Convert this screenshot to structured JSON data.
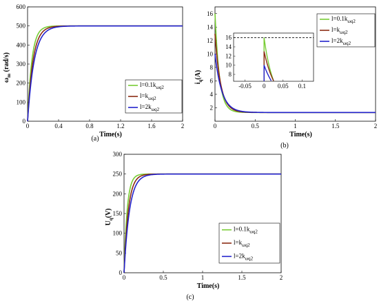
{
  "chart_data": [
    {
      "type": "line",
      "caption": "(a)",
      "xlabel": "Time(s)",
      "ylabel": "ω",
      "ylabel_sub": "m",
      "ylabel_tail": " (rad/s)",
      "xlim": [
        0,
        2
      ],
      "ylim": [
        0,
        600
      ],
      "xticks": [
        "0",
        "0.4",
        "0.8",
        "1.2",
        "1.6",
        "2"
      ],
      "xtick_values": [
        0,
        0.4,
        0.8,
        1.2,
        1.6,
        2
      ],
      "yticks": [
        "0",
        "100",
        "200",
        "300",
        "400",
        "500",
        "600"
      ],
      "ytick_values": [
        0,
        100,
        200,
        300,
        400,
        500,
        600
      ],
      "legend_position": "center-right",
      "series": [
        {
          "name": "l=0.1k",
          "name_sub": "ωq2",
          "color": "#77cc33",
          "final": 500,
          "tau": 0.055
        },
        {
          "name": "l=k",
          "name_sub": "ωq2",
          "color": "#8b2b12",
          "final": 500,
          "tau": 0.07
        },
        {
          "name": "l=2k",
          "name_sub": "ωq2",
          "color": "#2222cc",
          "final": 500,
          "tau": 0.085
        }
      ]
    },
    {
      "type": "line",
      "caption": "(b)",
      "xlabel": "Time(s)",
      "ylabel": "i",
      "ylabel_sub": "q",
      "ylabel_tail": "(A)",
      "xlim": [
        0,
        2
      ],
      "ylim": [
        0,
        17
      ],
      "xticks": [
        "0",
        "0.5",
        "1",
        "1.5",
        "2"
      ],
      "xtick_values": [
        0,
        0.5,
        1,
        1.5,
        2
      ],
      "yticks": [
        "2",
        "4",
        "6",
        "8",
        "10",
        "12",
        "14",
        "16"
      ],
      "ytick_values": [
        2,
        4,
        6,
        8,
        10,
        12,
        14,
        16
      ],
      "legend_position": "top-right",
      "series": [
        {
          "name": "l=0.1k",
          "name_sub": "ωq2",
          "color": "#77cc33",
          "peak": 16,
          "final": 1.3,
          "tau": 0.055
        },
        {
          "name": "l=k",
          "name_sub": "ωq2",
          "color": "#8b2b12",
          "peak": 13,
          "final": 1.3,
          "tau": 0.07
        },
        {
          "name": "l=2k",
          "name_sub": "ωq2",
          "color": "#2222cc",
          "peak": 10,
          "final": 1.3,
          "tau": 0.085
        }
      ],
      "inset": {
        "xlim": [
          -0.08,
          0.13
        ],
        "ylim": [
          6.5,
          17
        ],
        "xticks": [
          "-0.05",
          "0",
          "0.05",
          "0.1"
        ],
        "xtick_values": [
          -0.05,
          0,
          0.05,
          0.1
        ],
        "yticks": [
          "8",
          "10",
          "12",
          "14",
          "16"
        ],
        "ytick_values": [
          8,
          10,
          12,
          14,
          16
        ],
        "dashed_level": 16
      }
    },
    {
      "type": "line",
      "caption": "(c)",
      "xlabel": "Time(s)",
      "ylabel": "U",
      "ylabel_sub": "q",
      "ylabel_tail": "(V)",
      "xlim": [
        0,
        2
      ],
      "ylim": [
        0,
        300
      ],
      "xticks": [
        "0",
        "0.5",
        "1",
        "1.5",
        "2"
      ],
      "xtick_values": [
        0,
        0.5,
        1,
        1.5,
        2
      ],
      "yticks": [
        "0",
        "50",
        "100",
        "150",
        "200",
        "250",
        "300"
      ],
      "ytick_values": [
        0,
        50,
        100,
        150,
        200,
        250,
        300
      ],
      "legend_position": "bottom-right",
      "series": [
        {
          "name": "l=0.1k",
          "name_sub": "ωq2",
          "color": "#77cc33",
          "final": 250,
          "tau": 0.04
        },
        {
          "name": "l=k",
          "name_sub": "ωq2",
          "color": "#8b2b12",
          "final": 250,
          "tau": 0.055
        },
        {
          "name": "l=2k",
          "name_sub": "ωq2",
          "color": "#2222cc",
          "final": 250,
          "tau": 0.07
        }
      ]
    }
  ]
}
